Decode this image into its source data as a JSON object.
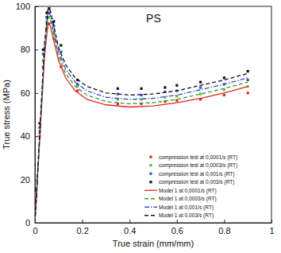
{
  "chart_data": {
    "type": "scatter",
    "annotation": "PS",
    "x_label": "True strain (mm/mm)",
    "y_label": "True stress (MPa)",
    "xlim": [
      0,
      1
    ],
    "xticks": [
      0,
      0.2,
      0.4,
      0.6,
      0.8,
      1
    ],
    "ylim": [
      0,
      100
    ],
    "yticks": [
      0,
      20,
      40,
      60,
      80,
      100
    ],
    "grid": false,
    "legend": "lower right",
    "series": [
      {
        "name": "compression test at 0,0001/s (RT)",
        "type": "scatter",
        "color": "#e8251f",
        "marker": "square",
        "x": [
          0.005,
          0.02,
          0.035,
          0.05,
          0.06,
          0.08,
          0.11,
          0.18,
          0.35,
          0.45,
          0.55,
          0.6,
          0.7,
          0.8,
          0.9
        ],
        "values": [
          12,
          40,
          72,
          90,
          92,
          85,
          72,
          61,
          55,
          55,
          56,
          56.5,
          57,
          59,
          60
        ]
      },
      {
        "name": "compression test at 0,0003/s (RT)",
        "type": "scatter",
        "color": "#5cc23c",
        "marker": "square",
        "x": [
          0.005,
          0.02,
          0.035,
          0.05,
          0.06,
          0.08,
          0.11,
          0.18,
          0.35,
          0.45,
          0.55,
          0.6,
          0.7,
          0.8,
          0.9
        ],
        "values": [
          13,
          42,
          75,
          93,
          95,
          88,
          76,
          63,
          57,
          57,
          58,
          58.5,
          59.5,
          61.5,
          63
        ]
      },
      {
        "name": "compression test at 0,001/s (RT)",
        "type": "scatter",
        "color": "#3a4fd0",
        "marker": "square",
        "x": [
          0.005,
          0.02,
          0.035,
          0.05,
          0.06,
          0.08,
          0.11,
          0.18,
          0.35,
          0.45,
          0.55,
          0.6,
          0.7,
          0.8,
          0.9
        ],
        "values": [
          14,
          44,
          78,
          95,
          97,
          91,
          79,
          64,
          59.5,
          59,
          60.5,
          61,
          62.5,
          64,
          66
        ]
      },
      {
        "name": "compression test at 0,003/s (RT)",
        "type": "scatter",
        "color": "#111111",
        "marker": "square",
        "x": [
          0.005,
          0.02,
          0.035,
          0.05,
          0.06,
          0.08,
          0.11,
          0.18,
          0.35,
          0.45,
          0.55,
          0.6,
          0.7,
          0.8,
          0.9
        ],
        "values": [
          15,
          46,
          80,
          97,
          99,
          93,
          82,
          66,
          62,
          62,
          62.5,
          63.5,
          65,
          67,
          70
        ]
      },
      {
        "name": "Model 1 at 0,0001/s (RT)",
        "type": "line",
        "color": "#e8251f",
        "line_style": "solid",
        "x": [
          0,
          0.02,
          0.04,
          0.055,
          0.065,
          0.08,
          0.1,
          0.13,
          0.17,
          0.22,
          0.3,
          0.4,
          0.5,
          0.6,
          0.7,
          0.8,
          0.9
        ],
        "values": [
          0,
          38,
          76,
          92,
          91,
          84,
          75,
          67,
          61,
          57,
          54.5,
          53.5,
          54,
          55.5,
          57.5,
          60,
          63
        ]
      },
      {
        "name": "Model 1 at 0,0003/s (RT)",
        "type": "line",
        "color": "#2e9e2e",
        "line_style": "dashed",
        "x": [
          0,
          0.02,
          0.04,
          0.055,
          0.065,
          0.08,
          0.1,
          0.13,
          0.17,
          0.22,
          0.3,
          0.4,
          0.5,
          0.6,
          0.7,
          0.8,
          0.9
        ],
        "values": [
          0,
          39,
          78,
          95,
          94,
          87,
          77,
          69,
          63,
          59,
          56,
          55,
          55.5,
          57,
          59.5,
          62,
          65
        ]
      },
      {
        "name": "Model 1 at 0,001/s (RT)",
        "type": "line",
        "color": "#3a4fd0",
        "line_style": "dashdot",
        "x": [
          0,
          0.02,
          0.04,
          0.055,
          0.065,
          0.08,
          0.1,
          0.13,
          0.17,
          0.22,
          0.3,
          0.4,
          0.5,
          0.6,
          0.7,
          0.8,
          0.9
        ],
        "values": [
          0,
          40,
          80,
          97,
          96,
          89,
          79,
          71,
          65,
          61,
          58,
          57,
          57.5,
          59,
          61.5,
          64,
          67
        ]
      },
      {
        "name": "Model 1 at 0,003/s (RT)",
        "type": "line",
        "color": "#111111",
        "line_style": "dashed",
        "x": [
          0,
          0.02,
          0.04,
          0.055,
          0.065,
          0.08,
          0.1,
          0.13,
          0.17,
          0.22,
          0.3,
          0.4,
          0.5,
          0.6,
          0.7,
          0.8,
          0.9
        ],
        "values": [
          0,
          41,
          82,
          99,
          98,
          91,
          81,
          73,
          67,
          63,
          60,
          59,
          59.5,
          61,
          63.5,
          66,
          69
        ]
      }
    ]
  }
}
